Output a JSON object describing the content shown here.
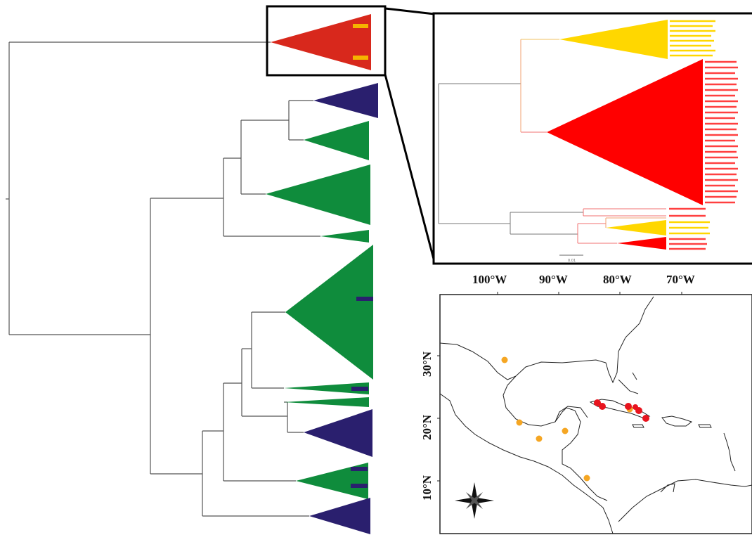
{
  "colors": {
    "red_clade": "#d8281c",
    "yellow": "#f5b400",
    "green_clade": "#0f8c3c",
    "navy_clade": "#2a1f6e",
    "inset_red": "#ff0000",
    "inset_yellow": "#ffd700",
    "map_red_dot": "#e8141e",
    "map_orange_dot": "#f5a623"
  },
  "map": {
    "longitude_labels": [
      "100°W",
      "90°W",
      "80°W",
      "70°W"
    ],
    "latitude_labels": [
      "30°N",
      "20°N",
      "10°N"
    ],
    "compass_icon": "compass-rose-icon",
    "orange_points": 6,
    "red_points": 6
  },
  "inset": {
    "scale_bar_label": "0.01"
  }
}
